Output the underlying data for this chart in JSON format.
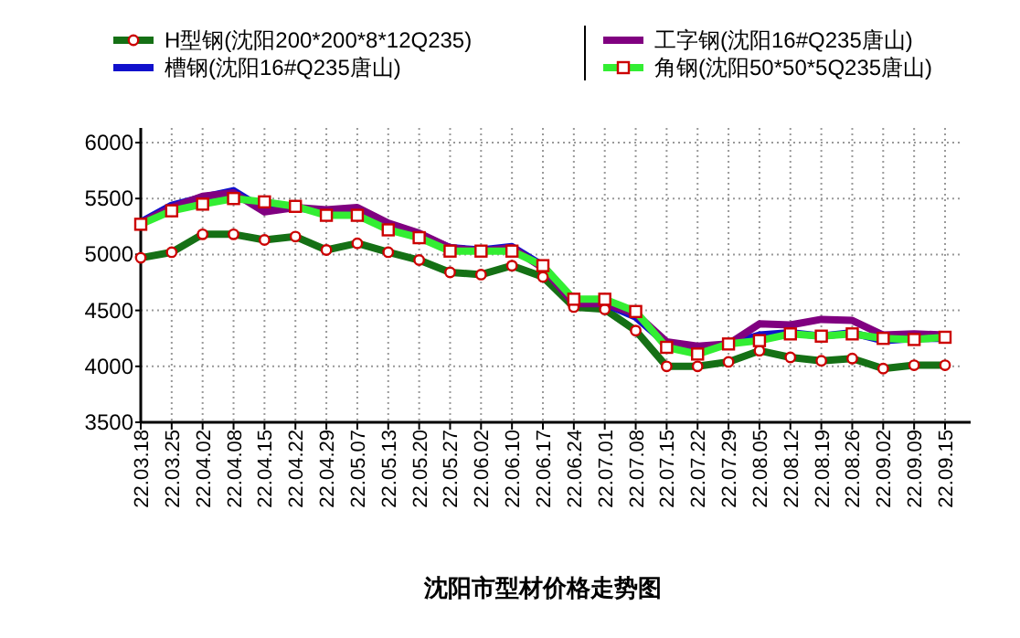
{
  "chart_data": {
    "type": "line",
    "title": "沈阳市型材价格走势图",
    "categories": [
      "22.03.18",
      "22.03.25",
      "22.04.02",
      "22.04.08",
      "22.04.15",
      "22.04.22",
      "22.04.29",
      "22.05.07",
      "22.05.13",
      "22.05.20",
      "22.05.27",
      "22.06.02",
      "22.06.10",
      "22.06.17",
      "22.06.24",
      "22.07.01",
      "22.07.08",
      "22.07.15",
      "22.07.22",
      "22.07.29",
      "22.08.05",
      "22.08.12",
      "22.08.19",
      "22.08.26",
      "22.09.02",
      "22.09.09",
      "22.09.15"
    ],
    "series": [
      {
        "name": "H型钢(沈阳200*200*8*12Q235)",
        "color": "#157015",
        "marker": "circle",
        "values": [
          4970,
          5020,
          5180,
          5180,
          5130,
          5160,
          5040,
          5100,
          5020,
          4950,
          4840,
          4820,
          4900,
          4800,
          4530,
          4510,
          4320,
          4000,
          4000,
          4040,
          4140,
          4080,
          4050,
          4070,
          3980,
          4010,
          4010
        ]
      },
      {
        "name": "槽钢(沈阳16#Q235唐山)",
        "color": "#1010cc",
        "marker": "none",
        "values": [
          5290,
          5440,
          5510,
          5570,
          5400,
          5420,
          5380,
          5390,
          5270,
          5180,
          5060,
          5040,
          5070,
          4900,
          4570,
          4560,
          4440,
          4200,
          4150,
          4200,
          4280,
          4300,
          4270,
          4300,
          4230,
          4250,
          4250
        ]
      },
      {
        "name": "工字钢(沈阳16#Q235唐山)",
        "color": "#800080",
        "marker": "none",
        "values": [
          5280,
          5420,
          5520,
          5550,
          5380,
          5420,
          5400,
          5420,
          5280,
          5190,
          5060,
          5030,
          5060,
          4880,
          4560,
          4560,
          4470,
          4220,
          4180,
          4200,
          4380,
          4370,
          4420,
          4410,
          4280,
          4290,
          4280
        ]
      },
      {
        "name": "角钢(沈阳50*50*5Q235唐山)",
        "color": "#33ee33",
        "marker": "square",
        "values": [
          5270,
          5390,
          5450,
          5500,
          5470,
          5430,
          5350,
          5350,
          5220,
          5150,
          5030,
          5030,
          5030,
          4900,
          4600,
          4600,
          4490,
          4170,
          4110,
          4200,
          4230,
          4290,
          4270,
          4290,
          4250,
          4240,
          4260
        ]
      }
    ],
    "ylim": [
      3500,
      6000
    ],
    "yticks": [
      3500,
      4000,
      4500,
      5000,
      5500,
      6000
    ],
    "grid": true,
    "legend": "top",
    "line_style": "solid"
  }
}
